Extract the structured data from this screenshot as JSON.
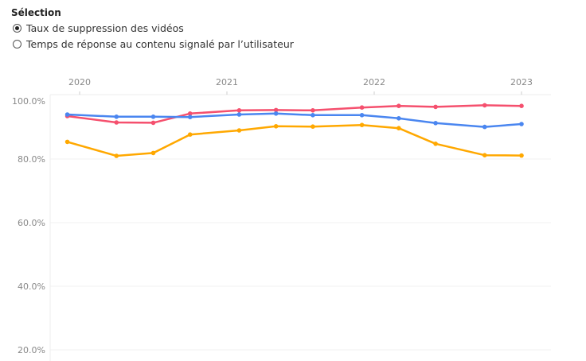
{
  "selector": {
    "title": "Sélection",
    "options": [
      {
        "label": "Taux de suppression des vidéos",
        "selected": true
      },
      {
        "label": "Temps de réponse au contenu signalé par l’utilisateur",
        "selected": false
      }
    ]
  },
  "chart_data": {
    "type": "line",
    "x_ticks": [
      "2020",
      "2021",
      "2022",
      "2023"
    ],
    "y_ticks": [
      "100.0%",
      "80.0%",
      "60.0%",
      "40.0%",
      "20.0%"
    ],
    "ylim": [
      20,
      100
    ],
    "x": [
      "2019-12",
      "2020-04",
      "2020-07",
      "2020-10",
      "2021-02",
      "2021-05",
      "2021-08",
      "2021-12",
      "2022-03",
      "2022-06",
      "2022-10",
      "2023-01"
    ],
    "grid": true,
    "series": [
      {
        "color": "#f5506e",
        "values": [
          93.5,
          91.5,
          91.4,
          94.3,
          95.3,
          95.4,
          95.3,
          96.2,
          96.7,
          96.4,
          96.9,
          96.7
        ]
      },
      {
        "color": "#4a86f0",
        "values": [
          94.0,
          93.3,
          93.3,
          93.2,
          94.0,
          94.3,
          93.8,
          93.8,
          92.8,
          91.3,
          90.1,
          91.0
        ]
      },
      {
        "color": "#ffa800",
        "values": [
          85.4,
          81.0,
          81.9,
          87.7,
          89.0,
          90.3,
          90.2,
          90.7,
          89.7,
          84.8,
          81.2,
          81.1
        ]
      }
    ]
  }
}
